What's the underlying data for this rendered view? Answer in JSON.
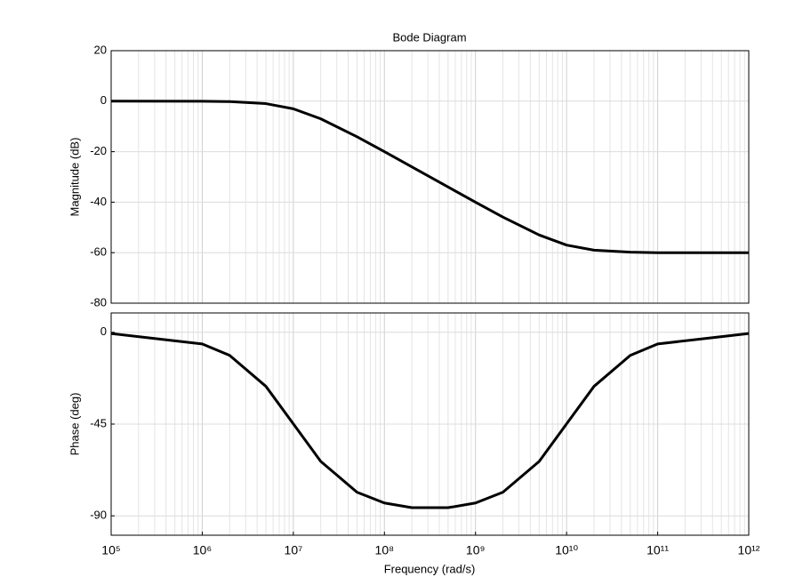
{
  "chart_data": [
    {
      "type": "line",
      "title": "Bode Diagram",
      "ylabel": "Magnitude (dB)",
      "xscale": "log",
      "grid": true,
      "minor_grid": true,
      "x": [
        100000,
        1000000,
        2000000,
        5000000,
        10000000,
        20000000,
        50000000,
        100000000,
        200000000,
        500000000,
        1000000000,
        2000000000,
        5000000000,
        10000000000,
        20000000000,
        50000000000,
        100000000000,
        1000000000000
      ],
      "values": [
        0,
        -0.04,
        -0.17,
        -0.97,
        -3.01,
        -6.99,
        -14.1,
        -20.0,
        -26.0,
        -34.0,
        -40.0,
        -45.9,
        -53.0,
        -57.0,
        -59.0,
        -59.8,
        -60.0,
        -60.0
      ],
      "color": "#000000",
      "xlim": [
        100000,
        1000000000000
      ],
      "ylim": [
        -80,
        20
      ],
      "yticks": [
        -80,
        -60,
        -40,
        -20,
        0,
        20
      ]
    },
    {
      "type": "line",
      "xlabel": "Frequency  (rad/s)",
      "ylabel": "Phase (deg)",
      "xscale": "log",
      "grid": true,
      "minor_grid": true,
      "x": [
        100000,
        1000000,
        2000000,
        5000000,
        10000000,
        20000000,
        50000000,
        100000000,
        200000000,
        500000000,
        1000000000,
        2000000000,
        5000000000,
        10000000000,
        20000000000,
        50000000000,
        100000000000,
        1000000000000
      ],
      "values": [
        -0.6,
        -5.7,
        -11.3,
        -26.5,
        -44.9,
        -63.3,
        -78.4,
        -83.7,
        -86.0,
        -86.0,
        -83.7,
        -78.4,
        -63.3,
        -44.9,
        -26.5,
        -11.3,
        -5.7,
        -0.6
      ],
      "color": "#000000",
      "xlim": [
        100000,
        1000000000000
      ],
      "xticks": [
        {
          "value": 100000,
          "label": "10⁵"
        },
        {
          "value": 1000000,
          "label": "10⁶"
        },
        {
          "value": 10000000,
          "label": "10⁷"
        },
        {
          "value": 100000000,
          "label": "10⁸"
        },
        {
          "value": 1000000000,
          "label": "10⁹"
        },
        {
          "value": 10000000000,
          "label": "10¹⁰"
        },
        {
          "value": 100000000000,
          "label": "10¹¹"
        },
        {
          "value": 1000000000000,
          "label": "10¹²"
        }
      ],
      "ylim": [
        -99.5,
        9.5
      ],
      "yticks": [
        -90,
        -45,
        0
      ]
    }
  ]
}
